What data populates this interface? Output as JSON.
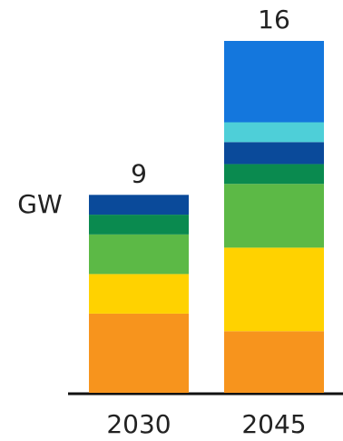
{
  "chart_data": {
    "type": "stacked_bar",
    "y_label": "GW",
    "categories": [
      "2030",
      "2045"
    ],
    "totals": [
      9,
      16
    ],
    "series": [
      {
        "color": "#f7941d",
        "values": [
          3.6,
          2.8
        ]
      },
      {
        "color": "#ffd200",
        "values": [
          1.8,
          3.8
        ]
      },
      {
        "color": "#5cb946",
        "values": [
          1.8,
          2.9
        ]
      },
      {
        "color": "#0a8a4f",
        "values": [
          0.9,
          0.9
        ]
      },
      {
        "color": "#0a4a9a",
        "values": [
          0.9,
          1.0
        ]
      },
      {
        "color": "#4ecfd8",
        "values": [
          null,
          0.9
        ]
      },
      {
        "color": "#1477dd",
        "values": [
          null,
          3.7
        ]
      }
    ]
  }
}
